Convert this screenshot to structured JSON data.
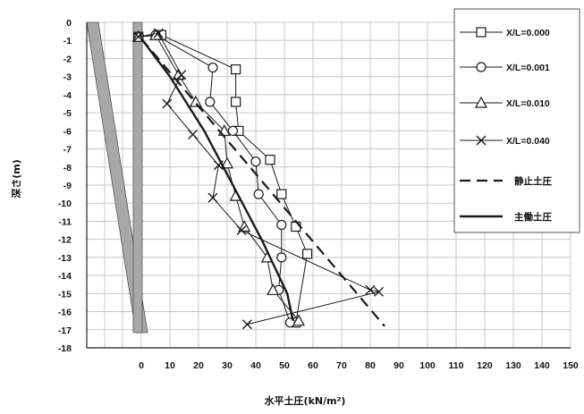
{
  "chart_data": {
    "type": "line",
    "xlabel": "水平土圧(kN/m²)",
    "ylabel": "深さ(m)",
    "x_ticks": [
      "0",
      "10",
      "20",
      "30",
      "40",
      "50",
      "60",
      "70",
      "80",
      "90",
      "100",
      "110",
      "120",
      "130",
      "140",
      "150"
    ],
    "y_ticks": [
      "0",
      "-1",
      "-2",
      "-3",
      "-4",
      "-5",
      "-6",
      "-7",
      "-8",
      "-9",
      "-10",
      "-11",
      "-12",
      "-13",
      "-14",
      "-15",
      "-16",
      "-17",
      "-18"
    ],
    "xlim": [
      0,
      150
    ],
    "ylim": [
      -18,
      0
    ],
    "grid": true,
    "legend_position": "top-right",
    "series": [
      {
        "name": "X/L=0.000",
        "marker": "square",
        "line": "solid-thin",
        "points": [
          [
            -1,
            -0.8
          ],
          [
            7,
            -0.7
          ],
          [
            33,
            -2.6
          ],
          [
            33,
            -4.4
          ],
          [
            34,
            -6.0
          ],
          [
            45,
            -7.6
          ],
          [
            49,
            -9.5
          ],
          [
            54,
            -11.3
          ],
          [
            58,
            -12.8
          ],
          [
            54,
            -16.6
          ]
        ]
      },
      {
        "name": "X/L=0.001",
        "marker": "circle",
        "line": "solid-thin",
        "points": [
          [
            -1,
            -0.8
          ],
          [
            5,
            -0.7
          ],
          [
            25,
            -2.5
          ],
          [
            24,
            -4.4
          ],
          [
            32,
            -6.0
          ],
          [
            40,
            -7.7
          ],
          [
            41,
            -9.5
          ],
          [
            49,
            -11.2
          ],
          [
            49,
            -13.0
          ],
          [
            48,
            -14.8
          ],
          [
            52,
            -16.6
          ]
        ]
      },
      {
        "name": "X/L=0.010",
        "marker": "triangle",
        "line": "solid-thin",
        "points": [
          [
            -1,
            -0.8
          ],
          [
            5,
            -0.7
          ],
          [
            13,
            -2.9
          ],
          [
            19,
            -4.4
          ],
          [
            29,
            -6.0
          ],
          [
            30,
            -7.8
          ],
          [
            33,
            -9.6
          ],
          [
            36,
            -11.3
          ],
          [
            44,
            -13.0
          ],
          [
            46,
            -14.8
          ],
          [
            55,
            -16.5
          ]
        ]
      },
      {
        "name": "X/L=0.040",
        "marker": "x",
        "line": "solid-thin",
        "points": [
          [
            -1,
            -0.8
          ],
          [
            6,
            -0.6
          ],
          [
            14,
            -2.9
          ],
          [
            9,
            -4.5
          ],
          [
            18,
            -6.2
          ],
          [
            27,
            -7.9
          ],
          [
            25,
            -9.7
          ],
          [
            35,
            -11.5
          ],
          [
            80,
            -14.8
          ],
          [
            83,
            -14.9
          ],
          [
            37,
            -16.7
          ]
        ]
      },
      {
        "name": "静止土圧",
        "marker": "none",
        "line": "dashed",
        "points": [
          [
            0,
            -0.9
          ],
          [
            85,
            -16.8
          ]
        ]
      },
      {
        "name": "主働土圧",
        "marker": "none",
        "line": "solid-thick",
        "points": [
          [
            0,
            -0.9
          ],
          [
            10,
            -3.0
          ],
          [
            22,
            -6.0
          ],
          [
            32,
            -9.0
          ],
          [
            42,
            -12.0
          ],
          [
            51,
            -15.0
          ],
          [
            53,
            -16.5
          ]
        ]
      }
    ]
  },
  "colors": {
    "grid": "#c8c8c8",
    "axis": "#222222",
    "series": "#1a1a1a",
    "wall_fill": "#a8a8a8",
    "wall_edge": "#555555"
  }
}
